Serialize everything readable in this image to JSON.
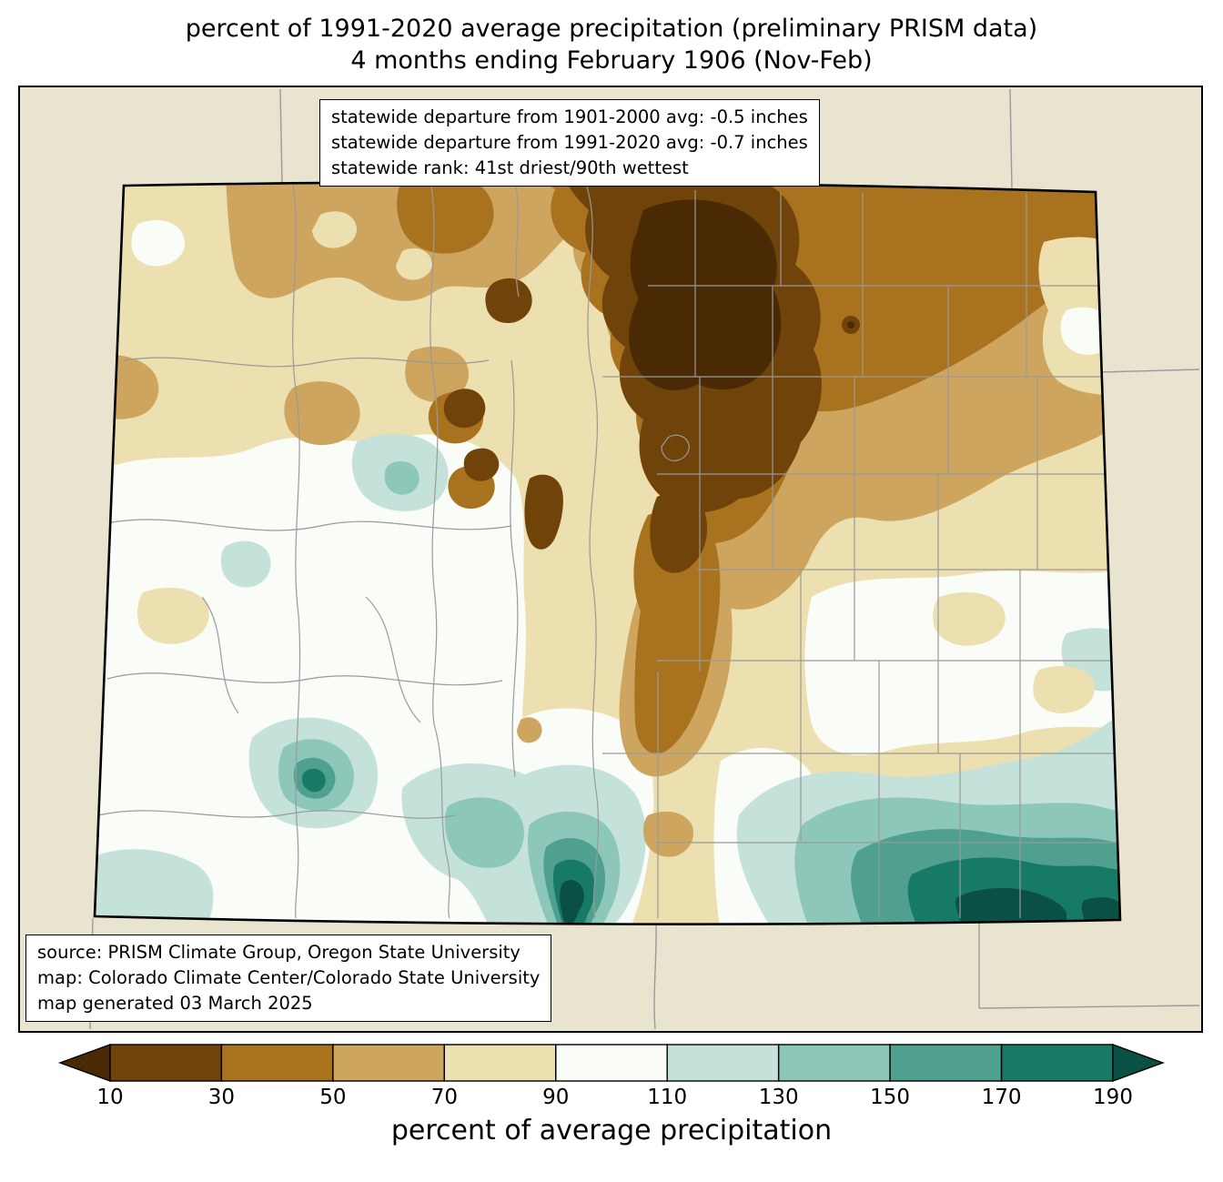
{
  "title": {
    "line1": "percent of 1991-2020 average precipitation (preliminary PRISM data)",
    "line2": "4 months ending February 1906 (Nov-Feb)"
  },
  "stats_box": {
    "lines": [
      "statewide departure from 1901-2000 avg: -0.5 inches",
      "statewide departure from 1991-2020 avg: -0.7 inches",
      "statewide rank: 41st driest/90th wettest"
    ]
  },
  "source_box": {
    "lines": [
      "source: PRISM Climate Group, Oregon State University",
      "map: Colorado Climate Center/Colorado State University",
      "map generated 03 March 2025"
    ]
  },
  "colorbar": {
    "label": "percent of average precipitation",
    "ticks": [
      "10",
      "30",
      "50",
      "70",
      "90",
      "110",
      "130",
      "150",
      "170",
      "190"
    ],
    "arrow_left_color": "#4a2a05",
    "segment_colors": [
      "#6f4309",
      "#a8721e",
      "#cda55e",
      "#ecdfb0",
      "#fafcf7",
      "#c5e2da",
      "#8dc7ba",
      "#4fa08e",
      "#177a67"
    ],
    "arrow_right_color": "#0b5044"
  },
  "map": {
    "outside_fill": "#e8e4cf",
    "state_border_color": "#000000",
    "county_line_color": "#9a9a9a"
  }
}
